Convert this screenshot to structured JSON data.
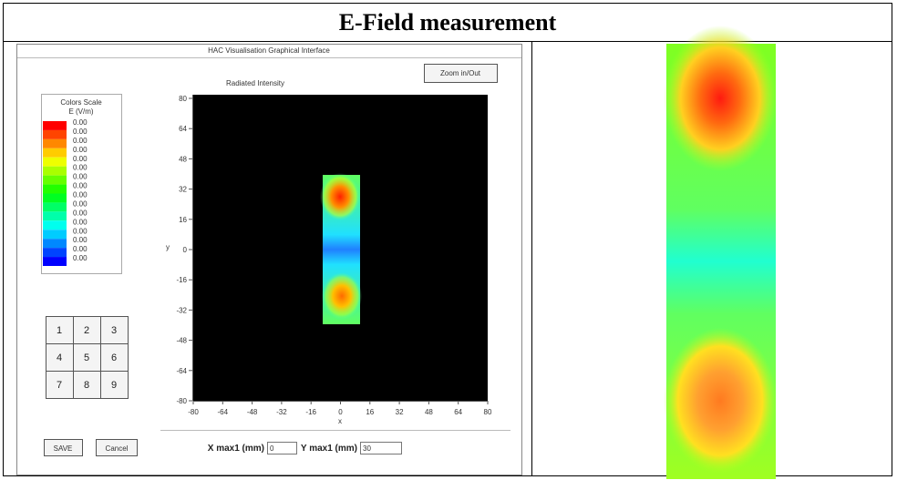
{
  "header": {
    "title": "E-Field measurement"
  },
  "window": {
    "title": "HAC Visualisation Graphical Interface",
    "zoom_button": "Zoom in/Out",
    "color_scale": {
      "title": "Colors Scale",
      "unit": "E (V/m)",
      "labels": [
        "0.00",
        "0.00",
        "0.00",
        "0.00",
        "0.00",
        "0.00",
        "0.00",
        "0.00",
        "0.00",
        "0.00",
        "0.00",
        "0.00",
        "0.00",
        "0.00",
        "0.00",
        "0.00"
      ]
    },
    "keypad": [
      "1",
      "2",
      "3",
      "4",
      "5",
      "6",
      "7",
      "8",
      "9"
    ],
    "plot": {
      "title": "Radiated Intensity",
      "xlabel": "x",
      "ylabel": "y",
      "xticks": [
        -80,
        -64,
        -48,
        -32,
        -16,
        0,
        16,
        32,
        48,
        64,
        80
      ],
      "yticks": [
        80,
        64,
        48,
        32,
        16,
        0,
        -16,
        -32,
        -48,
        -64,
        -80
      ]
    },
    "save_button": "SAVE",
    "cancel_button": "Cancel",
    "x_max": {
      "label": "X max1 (mm)",
      "value": "0"
    },
    "y_max": {
      "label": "Y max1 (mm)",
      "value": "30"
    }
  }
}
